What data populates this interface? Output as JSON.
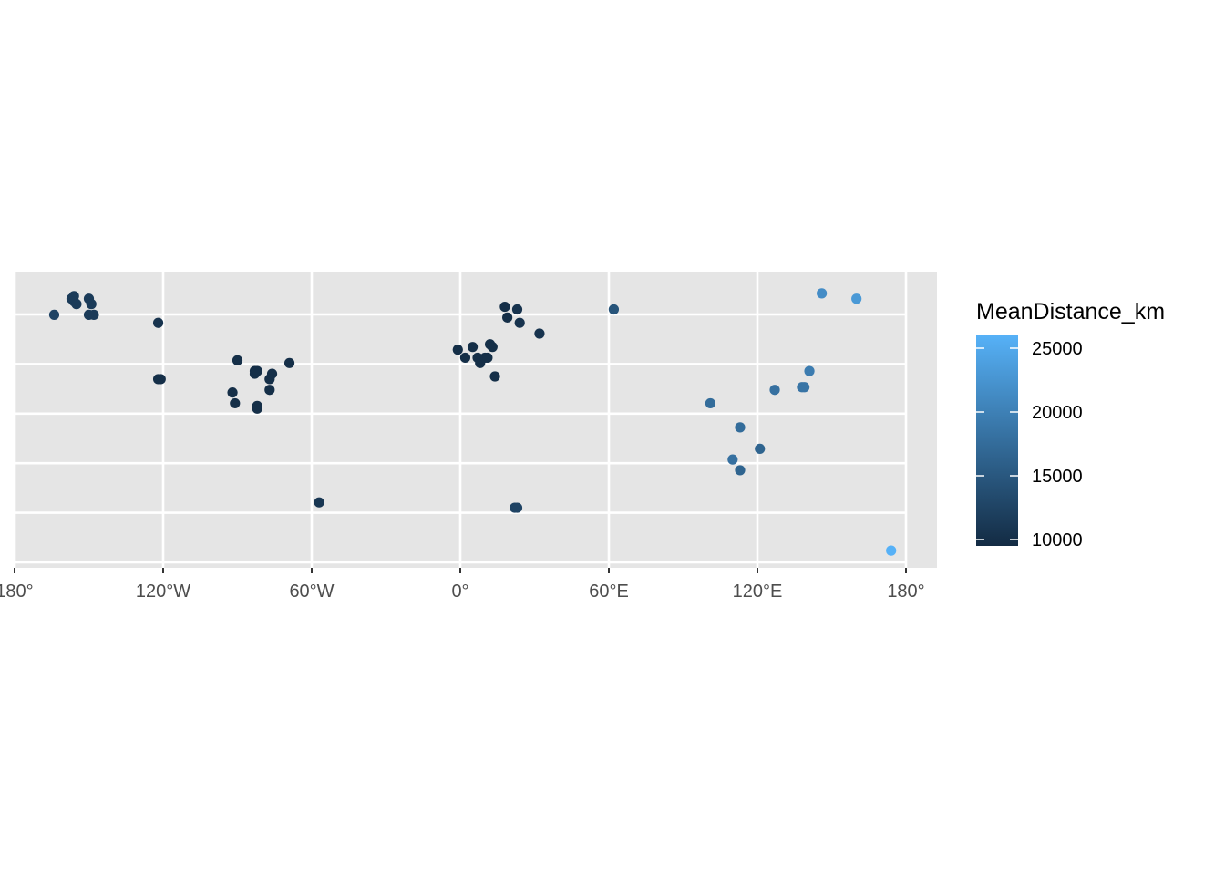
{
  "chart_data": {
    "type": "scatter",
    "xlim": [
      -180,
      180
    ],
    "x_ticks": [
      -180,
      -120,
      -60,
      0,
      60,
      120,
      180
    ],
    "x_tick_labels": [
      "180°",
      "120°W",
      "60°W",
      "0°",
      "60°E",
      "120°E",
      "180°"
    ],
    "y_gridlines": 6,
    "grid": true,
    "legend": {
      "title": "MeanDistance_km",
      "position": "right",
      "range": [
        9500,
        26000
      ],
      "ticks": [
        10000,
        15000,
        20000,
        25000
      ],
      "tick_labels": [
        "10000",
        "15000",
        "20000",
        "25000"
      ],
      "color_low": "#132B43",
      "color_high": "#56B1F7"
    },
    "points": [
      {
        "x": -164,
        "y": 0.9,
        "v": 12500
      },
      {
        "x": -157,
        "y": 0.96,
        "v": 11500
      },
      {
        "x": -156,
        "y": 0.97,
        "v": 11500
      },
      {
        "x": -156,
        "y": 0.95,
        "v": 11500
      },
      {
        "x": -155,
        "y": 0.94,
        "v": 11500
      },
      {
        "x": -150,
        "y": 0.96,
        "v": 11500
      },
      {
        "x": -149,
        "y": 0.94,
        "v": 11500
      },
      {
        "x": -150,
        "y": 0.9,
        "v": 11500
      },
      {
        "x": -148,
        "y": 0.9,
        "v": 11500
      },
      {
        "x": -122,
        "y": 0.87,
        "v": 10500
      },
      {
        "x": -122,
        "y": 0.66,
        "v": 10000
      },
      {
        "x": -121,
        "y": 0.66,
        "v": 10000
      },
      {
        "x": -90,
        "y": 0.73,
        "v": 10000
      },
      {
        "x": -83,
        "y": 0.68,
        "v": 10000
      },
      {
        "x": -83,
        "y": 0.69,
        "v": 10000
      },
      {
        "x": -82,
        "y": 0.69,
        "v": 10000
      },
      {
        "x": -76,
        "y": 0.68,
        "v": 10000
      },
      {
        "x": -77,
        "y": 0.66,
        "v": 10000
      },
      {
        "x": -77,
        "y": 0.62,
        "v": 10000
      },
      {
        "x": -69,
        "y": 0.72,
        "v": 10000
      },
      {
        "x": -92,
        "y": 0.61,
        "v": 10000
      },
      {
        "x": -91,
        "y": 0.57,
        "v": 10000
      },
      {
        "x": -82,
        "y": 0.55,
        "v": 10000
      },
      {
        "x": -82,
        "y": 0.56,
        "v": 10000
      },
      {
        "x": -57,
        "y": 0.2,
        "v": 11000
      },
      {
        "x": -1,
        "y": 0.77,
        "v": 10000
      },
      {
        "x": 2,
        "y": 0.74,
        "v": 10000
      },
      {
        "x": 5,
        "y": 0.78,
        "v": 10000
      },
      {
        "x": 7,
        "y": 0.74,
        "v": 10000
      },
      {
        "x": 8,
        "y": 0.72,
        "v": 10000
      },
      {
        "x": 10,
        "y": 0.74,
        "v": 10000
      },
      {
        "x": 11,
        "y": 0.74,
        "v": 10000
      },
      {
        "x": 12,
        "y": 0.79,
        "v": 10000
      },
      {
        "x": 13,
        "y": 0.78,
        "v": 10000
      },
      {
        "x": 14,
        "y": 0.67,
        "v": 10000
      },
      {
        "x": 18,
        "y": 0.93,
        "v": 10000
      },
      {
        "x": 19,
        "y": 0.89,
        "v": 10000
      },
      {
        "x": 23,
        "y": 0.92,
        "v": 10500
      },
      {
        "x": 24,
        "y": 0.87,
        "v": 10500
      },
      {
        "x": 32,
        "y": 0.83,
        "v": 10500
      },
      {
        "x": 22,
        "y": 0.18,
        "v": 12500
      },
      {
        "x": 23,
        "y": 0.18,
        "v": 12500
      },
      {
        "x": 62,
        "y": 0.92,
        "v": 14500
      },
      {
        "x": 101,
        "y": 0.57,
        "v": 17500
      },
      {
        "x": 113,
        "y": 0.48,
        "v": 17500
      },
      {
        "x": 110,
        "y": 0.36,
        "v": 18000
      },
      {
        "x": 113,
        "y": 0.32,
        "v": 16500
      },
      {
        "x": 121,
        "y": 0.4,
        "v": 16500
      },
      {
        "x": 127,
        "y": 0.62,
        "v": 18000
      },
      {
        "x": 138,
        "y": 0.63,
        "v": 18500
      },
      {
        "x": 139,
        "y": 0.63,
        "v": 18500
      },
      {
        "x": 141,
        "y": 0.69,
        "v": 19500
      },
      {
        "x": 146,
        "y": 0.98,
        "v": 21500
      },
      {
        "x": 160,
        "y": 0.96,
        "v": 23000
      },
      {
        "x": 174,
        "y": 0.02,
        "v": 26000
      }
    ]
  }
}
